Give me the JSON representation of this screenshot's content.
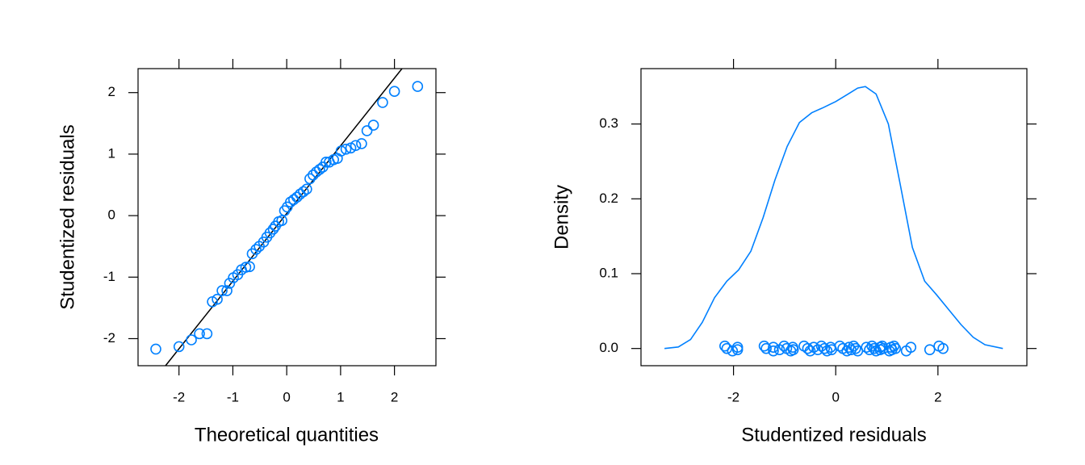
{
  "chart_data": [
    {
      "type": "qqplot",
      "xlabel": "Theoretical quantities",
      "ylabel": "Studentized residuals",
      "color": "#0080ff",
      "xlim": [
        -2.76,
        2.77
      ],
      "ylim": [
        -2.44,
        2.39
      ],
      "xticks": [
        -2,
        -1,
        0,
        1,
        2
      ],
      "yticks": [
        -2,
        -1,
        0,
        1,
        2
      ],
      "x": [
        -2.43,
        -2.0,
        -1.77,
        -1.62,
        -1.48,
        -1.38,
        -1.29,
        -1.2,
        -1.11,
        -1.06,
        -0.99,
        -0.91,
        -0.84,
        -0.76,
        -0.69,
        -0.64,
        -0.57,
        -0.51,
        -0.43,
        -0.37,
        -0.31,
        -0.25,
        -0.21,
        -0.15,
        -0.09,
        -0.04,
        0.01,
        0.07,
        0.13,
        0.19,
        0.25,
        0.31,
        0.37,
        0.43,
        0.49,
        0.55,
        0.61,
        0.67,
        0.73,
        0.79,
        0.87,
        0.94,
        1.01,
        1.1,
        1.19,
        1.28,
        1.39,
        1.49,
        1.61,
        1.78,
        2.0,
        2.43
      ],
      "values": [
        -2.17,
        -2.13,
        -2.02,
        -1.92,
        -1.92,
        -1.4,
        -1.36,
        -1.22,
        -1.22,
        -1.1,
        -1.01,
        -0.96,
        -0.88,
        -0.84,
        -0.83,
        -0.62,
        -0.55,
        -0.5,
        -0.43,
        -0.35,
        -0.28,
        -0.22,
        -0.17,
        -0.1,
        -0.08,
        0.08,
        0.14,
        0.22,
        0.26,
        0.3,
        0.35,
        0.39,
        0.43,
        0.6,
        0.66,
        0.71,
        0.75,
        0.79,
        0.87,
        0.87,
        0.91,
        0.93,
        1.05,
        1.08,
        1.1,
        1.14,
        1.17,
        1.38,
        1.47,
        1.84,
        2.02,
        2.1
      ],
      "reference_line": {
        "x": [
          -2.25,
          2.14
        ],
        "y": [
          -2.44,
          2.39
        ],
        "color": "#000000"
      }
    },
    {
      "type": "density",
      "xlabel": "Studentized residuals",
      "ylabel": "Density",
      "color": "#0080ff",
      "xlim": [
        -3.81,
        3.74
      ],
      "ylim": [
        -0.023,
        0.374
      ],
      "xticks": [
        -2,
        0,
        2
      ],
      "yticks": [
        {
          "value": 0,
          "label": "0.0"
        },
        0.1,
        0.2,
        0.3
      ],
      "x": [
        -3.35,
        -3.08,
        -2.84,
        -2.61,
        -2.37,
        -2.13,
        -1.9,
        -1.66,
        -1.42,
        -1.19,
        -0.95,
        -0.71,
        -0.47,
        -0.24,
        0,
        0.24,
        0.43,
        0.58,
        0.79,
        1.03,
        1.26,
        1.5,
        1.74,
        1.97,
        2.21,
        2.45,
        2.69,
        2.92,
        3.27
      ],
      "values": [
        0.0,
        0.002,
        0.012,
        0.035,
        0.068,
        0.09,
        0.105,
        0.13,
        0.175,
        0.225,
        0.27,
        0.302,
        0.315,
        0.322,
        0.33,
        0.34,
        0.348,
        0.35,
        0.34,
        0.3,
        0.22,
        0.135,
        0.09,
        0.072,
        0.052,
        0.032,
        0.015,
        0.005,
        0.0
      ],
      "rug": [
        -2.17,
        -2.13,
        -2.02,
        -1.92,
        -1.92,
        -1.4,
        -1.36,
        -1.22,
        -1.22,
        -1.1,
        -1.01,
        -0.96,
        -0.88,
        -0.84,
        -0.83,
        -0.62,
        -0.55,
        -0.5,
        -0.43,
        -0.35,
        -0.28,
        -0.22,
        -0.17,
        -0.1,
        -0.08,
        0.08,
        0.14,
        0.22,
        0.26,
        0.3,
        0.35,
        0.39,
        0.43,
        0.6,
        0.66,
        0.71,
        0.75,
        0.79,
        0.87,
        0.87,
        0.91,
        0.93,
        1.05,
        1.08,
        1.1,
        1.14,
        1.17,
        1.38,
        1.47,
        1.84,
        2.02,
        2.1
      ]
    }
  ]
}
